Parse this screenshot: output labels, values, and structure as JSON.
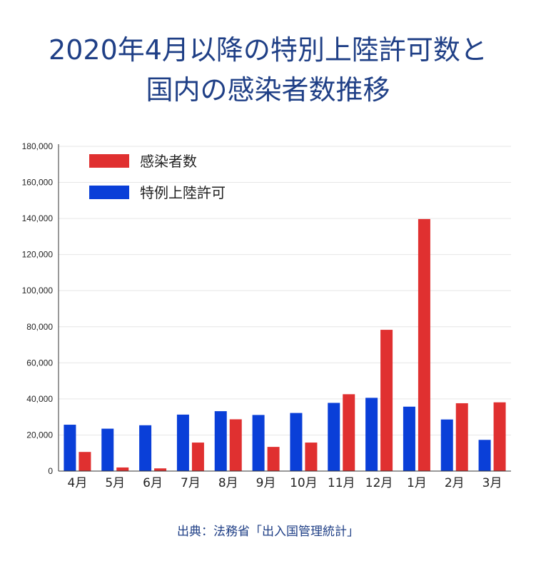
{
  "header": {
    "title_line1": "2020年4月以降の特別上陸許可数と",
    "title_line2": "国内の感染者数推移"
  },
  "source": "出典：法務省「出入国管理統計」",
  "colors": {
    "infections": "#e03030",
    "landing": "#0a3fd8",
    "title": "#1f3f86"
  },
  "chart_data": {
    "type": "bar",
    "title": "2020年4月以降の特別上陸許可数と国内の感染者数推移",
    "categories": [
      "4月",
      "5月",
      "6月",
      "7月",
      "8月",
      "9月",
      "10月",
      "11月",
      "12月",
      "1月",
      "2月",
      "3月"
    ],
    "series": [
      {
        "name": "特例上陸許可",
        "color": "#0a3fd8",
        "values": [
          25700,
          23500,
          25400,
          31300,
          33200,
          31100,
          32200,
          37800,
          40600,
          35700,
          28600,
          17300
        ]
      },
      {
        "name": "感染者数",
        "color": "#e03030",
        "values": [
          10600,
          2000,
          1500,
          15800,
          28700,
          13400,
          15800,
          42600,
          78300,
          139700,
          37600,
          38100
        ]
      }
    ],
    "legend": [
      {
        "name": "感染者数",
        "color": "#e03030"
      },
      {
        "name": "特例上陸許可",
        "color": "#0a3fd8"
      }
    ],
    "ylim": [
      0,
      180000
    ],
    "yticks": [
      0,
      20000,
      40000,
      60000,
      80000,
      100000,
      120000,
      140000,
      160000,
      180000
    ],
    "ytick_labels": [
      "0",
      "20,000",
      "40,000",
      "60,000",
      "80,000",
      "100,000",
      "120,000",
      "140,000",
      "160,000",
      "180,000"
    ],
    "grid": true,
    "legend_position": "top-left",
    "xlabel": "",
    "ylabel": ""
  }
}
